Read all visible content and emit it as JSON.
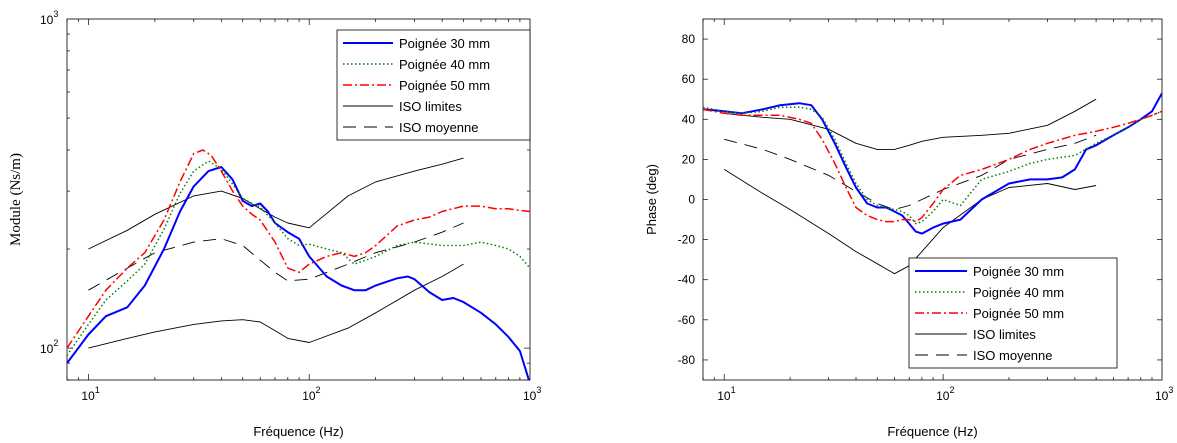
{
  "chart_data": [
    {
      "type": "line",
      "xscale": "log",
      "yscale": "log",
      "xlim": [
        8,
        1000
      ],
      "ylim": [
        80,
        1000
      ],
      "xlabel": "Fréquence (Hz)",
      "ylabel": "Module (Ns/m)",
      "xticks": [
        {
          "base": "10",
          "exp": "1",
          "value": 10
        },
        {
          "base": "10",
          "exp": "2",
          "value": 100
        },
        {
          "base": "10",
          "exp": "3",
          "value": 1000
        }
      ],
      "yticks": [
        {
          "base": "10",
          "exp": "2",
          "value": 100
        },
        {
          "base": "10",
          "exp": "3",
          "value": 1000
        }
      ],
      "grid": false,
      "legend_position": "top-right",
      "series": [
        {
          "name": "Poignée 30 mm",
          "color": "#0000ff",
          "style": "solid",
          "width": 2,
          "x": [
            8,
            10,
            12,
            15,
            18,
            22,
            26,
            30,
            35,
            40,
            45,
            50,
            55,
            60,
            65,
            70,
            80,
            90,
            100,
            120,
            140,
            160,
            180,
            200,
            250,
            280,
            300,
            350,
            400,
            450,
            500,
            600,
            700,
            800,
            900,
            1000
          ],
          "y": [
            90,
            110,
            125,
            133,
            155,
            200,
            260,
            310,
            345,
            355,
            325,
            280,
            270,
            275,
            260,
            240,
            225,
            215,
            190,
            165,
            155,
            150,
            150,
            155,
            163,
            165,
            162,
            148,
            140,
            142,
            138,
            128,
            118,
            108,
            98,
            78
          ]
        },
        {
          "name": "Poignée 40 mm",
          "color": "#008000",
          "style": "dotted",
          "width": 1.5,
          "x": [
            8,
            10,
            12,
            15,
            18,
            22,
            26,
            30,
            35,
            40,
            45,
            50,
            55,
            60,
            70,
            80,
            90,
            100,
            120,
            140,
            160,
            180,
            200,
            250,
            300,
            400,
            500,
            600,
            700,
            800,
            900,
            1000
          ],
          "y": [
            95,
            118,
            140,
            160,
            180,
            230,
            295,
            345,
            370,
            350,
            315,
            285,
            275,
            268,
            240,
            215,
            205,
            207,
            200,
            195,
            180,
            185,
            190,
            205,
            210,
            205,
            205,
            210,
            205,
            200,
            190,
            175
          ]
        },
        {
          "name": "Poignée 50 mm",
          "color": "#ff0000",
          "style": "dashdot",
          "width": 1.5,
          "x": [
            8,
            10,
            12,
            15,
            18,
            22,
            26,
            30,
            33,
            36,
            40,
            45,
            50,
            55,
            60,
            70,
            80,
            90,
            100,
            120,
            140,
            160,
            180,
            200,
            250,
            300,
            350,
            400,
            500,
            600,
            700,
            800,
            900,
            1000
          ],
          "y": [
            100,
            125,
            150,
            175,
            195,
            245,
            320,
            390,
            400,
            385,
            345,
            300,
            270,
            255,
            245,
            210,
            175,
            170,
            180,
            190,
            195,
            190,
            195,
            205,
            235,
            245,
            250,
            260,
            270,
            270,
            265,
            265,
            262,
            260
          ]
        },
        {
          "name": "ISO limites",
          "color": "#000000",
          "style": "solid",
          "width": 0.9,
          "x": [
            10,
            15,
            20,
            30,
            40,
            50,
            60,
            70,
            80,
            100,
            150,
            200,
            300,
            400,
            500
          ],
          "y": [
            200,
            228,
            255,
            290,
            300,
            285,
            265,
            250,
            240,
            232,
            290,
            320,
            345,
            362,
            378
          ]
        },
        {
          "name": "",
          "color": "#000000",
          "style": "solid",
          "width": 0.9,
          "x": [
            10,
            15,
            20,
            30,
            40,
            50,
            60,
            70,
            80,
            100,
            150,
            200,
            300,
            400,
            500
          ],
          "y": [
            100,
            107,
            112,
            118,
            121,
            122,
            120,
            113,
            107,
            104,
            115,
            128,
            150,
            165,
            180
          ]
        },
        {
          "name": "ISO moyenne",
          "color": "#000000",
          "style": "dashed",
          "width": 0.9,
          "x": [
            10,
            15,
            20,
            30,
            40,
            50,
            60,
            70,
            80,
            100,
            150,
            200,
            300,
            400,
            500
          ],
          "y": [
            150,
            175,
            195,
            210,
            215,
            205,
            185,
            170,
            160,
            162,
            180,
            195,
            210,
            225,
            240
          ]
        }
      ]
    },
    {
      "type": "line",
      "xscale": "log",
      "yscale": "linear",
      "xlim": [
        8,
        1000
      ],
      "ylim": [
        -90,
        90
      ],
      "xlabel": "Fréquence (Hz)",
      "ylabel": "Phase (deg)",
      "xticks": [
        {
          "base": "10",
          "exp": "1",
          "value": 10
        },
        {
          "base": "10",
          "exp": "2",
          "value": 100
        },
        {
          "base": "10",
          "exp": "3",
          "value": 1000
        }
      ],
      "yticks": [
        {
          "label": "80",
          "value": 80
        },
        {
          "label": "60",
          "value": 60
        },
        {
          "label": "40",
          "value": 40
        },
        {
          "label": "20",
          "value": 20
        },
        {
          "label": "0",
          "value": 0
        },
        {
          "label": "-20",
          "value": -20
        },
        {
          "label": "-40",
          "value": -40
        },
        {
          "label": "-60",
          "value": -60
        },
        {
          "label": "-80",
          "value": -80
        }
      ],
      "grid": false,
      "legend_position": "bottom-right",
      "series": [
        {
          "name": "Poignée 30 mm",
          "color": "#0000ff",
          "style": "solid",
          "width": 2,
          "x": [
            8,
            10,
            12,
            15,
            18,
            22,
            25,
            28,
            32,
            36,
            40,
            45,
            50,
            55,
            60,
            65,
            70,
            75,
            80,
            90,
            100,
            120,
            150,
            200,
            250,
            300,
            350,
            400,
            450,
            500,
            600,
            700,
            800,
            900,
            1000
          ],
          "y": [
            45,
            44,
            43,
            45,
            47,
            48,
            47,
            40,
            28,
            16,
            6,
            -2,
            -4,
            -4,
            -6,
            -8,
            -12,
            -16,
            -17,
            -14,
            -12,
            -10,
            0,
            8,
            10,
            10,
            11,
            15,
            25,
            27,
            32,
            36,
            40,
            44,
            53
          ]
        },
        {
          "name": "Poignée 40 mm",
          "color": "#008000",
          "style": "dotted",
          "width": 1.5,
          "x": [
            8,
            10,
            12,
            15,
            18,
            22,
            25,
            28,
            32,
            36,
            40,
            45,
            50,
            55,
            60,
            65,
            70,
            75,
            80,
            90,
            100,
            120,
            150,
            200,
            250,
            300,
            400,
            500,
            600,
            700,
            800,
            900,
            1000
          ],
          "y": [
            46,
            44,
            43,
            44,
            46,
            46,
            45,
            41,
            30,
            18,
            8,
            0,
            -3,
            -4,
            -5,
            -6,
            -8,
            -12,
            -11,
            -6,
            0,
            -3,
            10,
            14,
            18,
            20,
            22,
            28,
            32,
            36,
            40,
            42,
            44
          ]
        },
        {
          "name": "Poignée 50 mm",
          "color": "#ff0000",
          "style": "dashdot",
          "width": 1.5,
          "x": [
            8,
            10,
            12,
            15,
            18,
            22,
            25,
            28,
            32,
            36,
            40,
            45,
            50,
            55,
            60,
            65,
            70,
            75,
            80,
            90,
            100,
            120,
            150,
            200,
            250,
            300,
            400,
            500,
            600,
            700,
            800,
            900,
            1000
          ],
          "y": [
            45,
            43,
            42,
            42,
            42,
            40,
            38,
            30,
            18,
            6,
            -4,
            -8,
            -10,
            -11,
            -11,
            -10,
            -10,
            -11,
            -9,
            -2,
            5,
            12,
            15,
            20,
            25,
            28,
            32,
            34,
            36,
            38,
            40,
            42,
            44
          ]
        },
        {
          "name": "ISO limites",
          "color": "#000000",
          "style": "solid",
          "width": 0.9,
          "x": [
            10,
            15,
            20,
            30,
            40,
            50,
            60,
            70,
            80,
            100,
            150,
            200,
            300,
            400,
            500
          ],
          "y": [
            43,
            41,
            40,
            35,
            28,
            25,
            25,
            27,
            29,
            31,
            32,
            33,
            37,
            44,
            50
          ]
        },
        {
          "name": "",
          "color": "#000000",
          "style": "solid",
          "width": 0.9,
          "x": [
            10,
            15,
            20,
            30,
            40,
            50,
            60,
            70,
            80,
            100,
            150,
            200,
            300,
            400,
            500
          ],
          "y": [
            15,
            3,
            -5,
            -17,
            -26,
            -32,
            -37,
            -33,
            -26,
            -14,
            0,
            6,
            8,
            5,
            7
          ]
        },
        {
          "name": "ISO moyenne",
          "color": "#000000",
          "style": "dashed",
          "width": 0.9,
          "x": [
            10,
            15,
            20,
            30,
            40,
            50,
            60,
            70,
            80,
            100,
            150,
            200,
            300,
            400,
            500
          ],
          "y": [
            30,
            25,
            20,
            12,
            4,
            -2,
            -5,
            -3,
            0,
            5,
            12,
            20,
            25,
            28,
            32
          ]
        }
      ]
    }
  ]
}
